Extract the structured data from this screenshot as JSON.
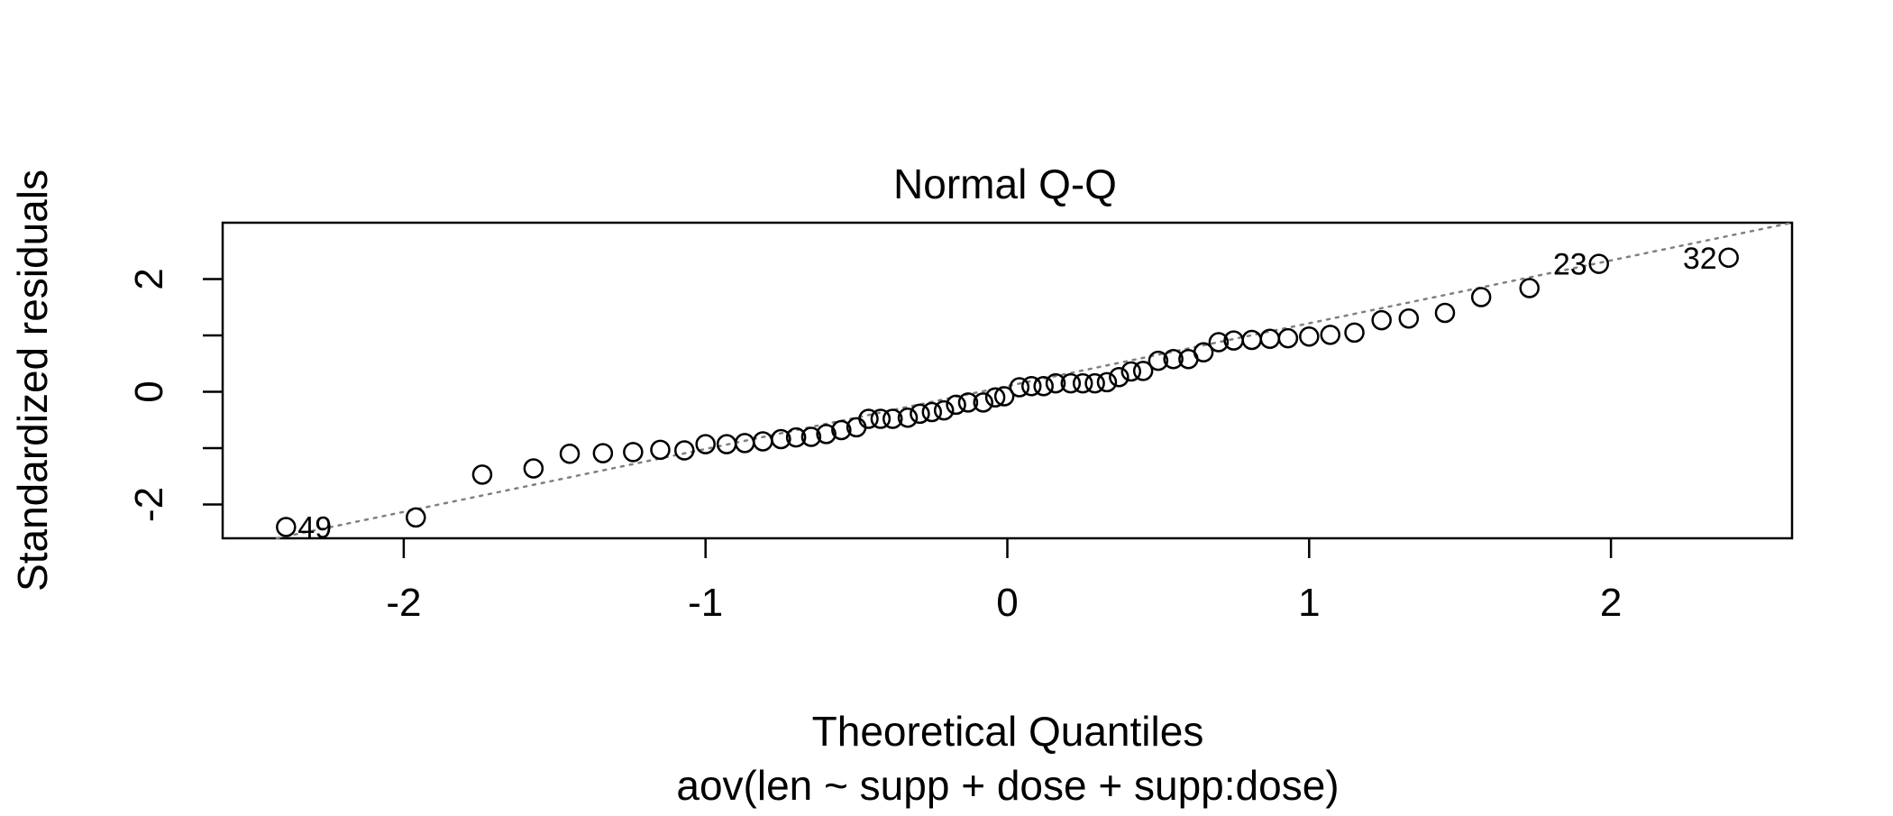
{
  "chart_data": {
    "type": "scatter",
    "title": "Normal Q-Q",
    "subtitle": "aov(len ~ supp + dose + supp:dose)",
    "xlabel": "Theoretical Quantiles",
    "ylabel": "Standardized residuals",
    "xlim": [
      -2.6,
      2.6
    ],
    "ylim": [
      -2.6,
      3.0
    ],
    "xticks": [
      -2,
      -1,
      0,
      1,
      2
    ],
    "xtick_labels": [
      "-2",
      "-1",
      "0",
      "1",
      "2"
    ],
    "yticks": [
      -2,
      -1,
      0,
      1,
      2
    ],
    "ytick_labels": [
      "-2",
      "",
      "0",
      "",
      "2"
    ],
    "grid": false,
    "reference_line": {
      "x": [
        -2.6,
        2.6
      ],
      "y": [
        -2.8,
        3.0
      ],
      "style": "dotted",
      "color": "#808080"
    },
    "point_color": "#000000",
    "points": {
      "x": [
        -2.39,
        -1.96,
        -1.74,
        -1.57,
        -1.45,
        -1.34,
        -1.24,
        -1.15,
        -1.07,
        -1.0,
        -0.93,
        -0.87,
        -0.81,
        -0.75,
        -0.7,
        -0.65,
        -0.6,
        -0.55,
        -0.5,
        -0.46,
        -0.42,
        -0.38,
        -0.33,
        -0.29,
        -0.25,
        -0.21,
        -0.17,
        -0.13,
        -0.08,
        -0.04,
        -0.01,
        0.04,
        0.08,
        0.12,
        0.16,
        0.21,
        0.25,
        0.29,
        0.33,
        0.37,
        0.41,
        0.45,
        0.5,
        0.55,
        0.6,
        0.65,
        0.7,
        0.75,
        0.81,
        0.87,
        0.93,
        1.0,
        1.07,
        1.15,
        1.24,
        1.33,
        1.45,
        1.57,
        1.73,
        1.96,
        2.39
      ],
      "y": [
        -2.4,
        -2.23,
        -1.47,
        -1.36,
        -1.1,
        -1.09,
        -1.07,
        -1.03,
        -1.04,
        -0.93,
        -0.93,
        -0.91,
        -0.88,
        -0.84,
        -0.81,
        -0.8,
        -0.75,
        -0.68,
        -0.63,
        -0.48,
        -0.48,
        -0.48,
        -0.46,
        -0.39,
        -0.36,
        -0.33,
        -0.23,
        -0.19,
        -0.19,
        -0.1,
        -0.08,
        0.08,
        0.1,
        0.1,
        0.15,
        0.15,
        0.15,
        0.15,
        0.17,
        0.26,
        0.36,
        0.37,
        0.55,
        0.58,
        0.58,
        0.7,
        0.88,
        0.91,
        0.92,
        0.94,
        0.95,
        0.98,
        1.01,
        1.05,
        1.27,
        1.3,
        1.4,
        1.68,
        1.84,
        2.27,
        2.38
      ],
      "labels": {
        "0": "49",
        "59": "23",
        "60": "32"
      }
    }
  }
}
